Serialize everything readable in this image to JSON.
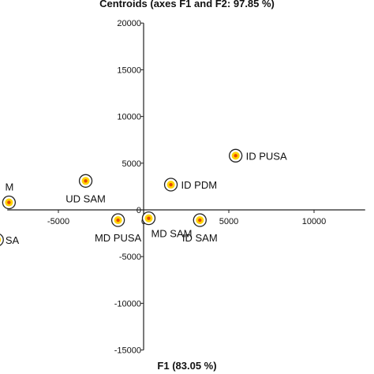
{
  "chart_data": {
    "type": "scatter",
    "title": "Centroids (axes F1 and F2: 97.85 %)",
    "xlabel": "F1 (83.05 %)",
    "ylabel": "",
    "xlim": [
      -8000,
      13000
    ],
    "ylim": [
      -15000,
      20000
    ],
    "x_ticks": [
      -5000,
      0,
      5000,
      10000
    ],
    "x_tick_labels": [
      "-5000",
      "0",
      "5000",
      "10000"
    ],
    "y_ticks": [
      -15000,
      -10000,
      -5000,
      0,
      5000,
      10000,
      15000,
      20000
    ],
    "y_tick_labels": [
      "-15000",
      "-10000",
      "-5000",
      "0",
      "5000",
      "10000",
      "15000",
      "20000"
    ],
    "grid": false,
    "marker_colors": {
      "ring": "#222222",
      "fill": "#ffd400",
      "center": "#e84a00"
    },
    "points": [
      {
        "label": "ID PUSA",
        "x": 5400,
        "y": 5800,
        "label_pos": "right"
      },
      {
        "label": "ID PDM",
        "x": 1600,
        "y": 2700,
        "label_pos": "right"
      },
      {
        "label": "UD SAM",
        "x": -3400,
        "y": 3100,
        "label_pos": "below"
      },
      {
        "label": "MD PUSA",
        "x": -1500,
        "y": -1100,
        "label_pos": "below"
      },
      {
        "label": "MD SAM",
        "x": 300,
        "y": -900,
        "label_pos": "below-right"
      },
      {
        "label": "ID SAM",
        "x": 3300,
        "y": -1100,
        "label_pos": "below"
      },
      {
        "label": "M",
        "x": -7900,
        "y": 800,
        "label_pos": "above-left"
      },
      {
        "label": "SA",
        "x": -8600,
        "y": -3200,
        "label_pos": "left"
      }
    ]
  }
}
